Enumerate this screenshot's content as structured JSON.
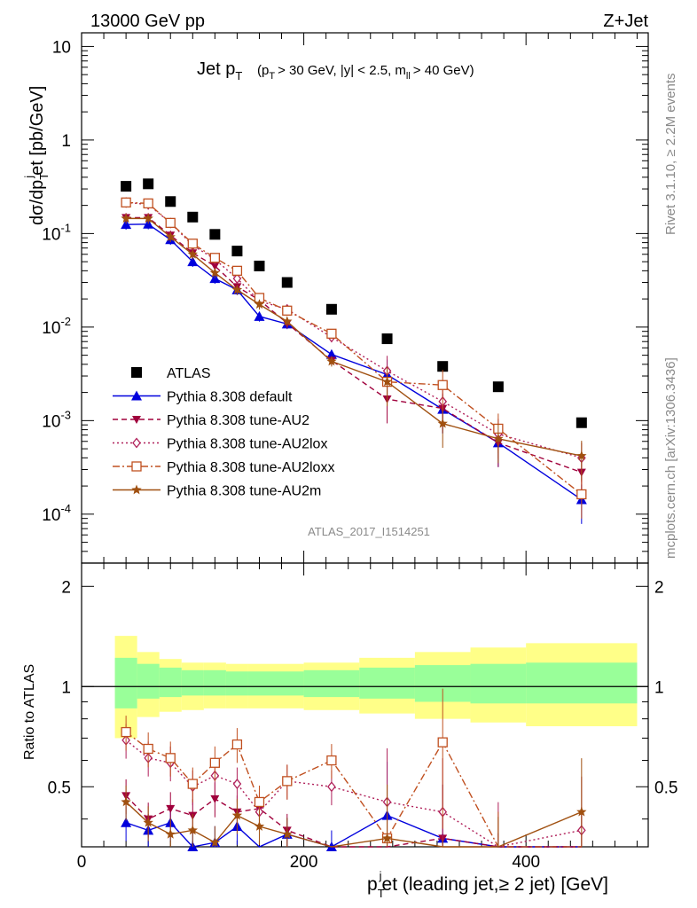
{
  "header": {
    "left": "13000 GeV pp",
    "right": "Z+Jet"
  },
  "plot_title": {
    "main": "Jet p",
    "sub": "T",
    "cuts": "(p",
    "cuts_sub": "T",
    "cuts_rest": "> 30 GeV, |y| < 2.5, m",
    "cuts_sub2": "ll",
    "cuts_end": "> 40 GeV)"
  },
  "side_labels": {
    "rivet": "Rivet 3.1.10, ≥ 2.2M events",
    "mcplots": "mcplots.cern.ch [arXiv:1306.3436]"
  },
  "watermark": "ATLAS_2017_I1514251",
  "ylabel_main": {
    "a": "dσ/dp",
    "b": "T",
    "c": "j",
    "d": "et [pb/GeV]"
  },
  "ylabel_ratio": "Ratio to ATLAS",
  "xlabel": {
    "a": "p",
    "b": "T",
    "c": "j",
    "d": "et (leading jet,≥ 2 jet) [GeV]"
  },
  "colors": {
    "ATLAS": "#000000",
    "default": "#0000dd",
    "AU2": "#a0003c",
    "AU2lox": "#b0205a",
    "AU2loxx": "#c05020",
    "AU2m": "#a05010",
    "band_inner": "#99ff99",
    "band_outer": "#ffff88"
  },
  "chart_data": {
    "type": "scatter",
    "xlim": [
      0,
      510
    ],
    "ylim_main": [
      3e-05,
      14
    ],
    "ylim_ratio": [
      0.33,
      2.35
    ],
    "y_log": true,
    "x_ticks": [
      "0",
      "200",
      "400"
    ],
    "y_ticks_main": [
      "10",
      "1",
      "10^-1",
      "10^-2",
      "10^-3",
      "10^-4"
    ],
    "y_ticks_ratio": [
      "2",
      "1",
      "0.5"
    ],
    "x": [
      40,
      60,
      80,
      100,
      120,
      140,
      160,
      185,
      225,
      275,
      325,
      375,
      450
    ],
    "bin_edges": [
      30,
      50,
      70,
      90,
      110,
      130,
      150,
      170,
      200,
      250,
      300,
      350,
      400,
      500
    ],
    "ratio_band_inner": [
      [
        0.86,
        1.22
      ],
      [
        0.92,
        1.17
      ],
      [
        0.93,
        1.14
      ],
      [
        0.94,
        1.12
      ],
      [
        0.94,
        1.12
      ],
      [
        0.94,
        1.11
      ],
      [
        0.94,
        1.11
      ],
      [
        0.94,
        1.11
      ],
      [
        0.93,
        1.12
      ],
      [
        0.92,
        1.14
      ],
      [
        0.9,
        1.16
      ],
      [
        0.89,
        1.17
      ],
      [
        0.89,
        1.18
      ]
    ],
    "ratio_band_outer": [
      [
        0.7,
        1.42
      ],
      [
        0.81,
        1.27
      ],
      [
        0.84,
        1.21
      ],
      [
        0.85,
        1.18
      ],
      [
        0.86,
        1.18
      ],
      [
        0.86,
        1.17
      ],
      [
        0.86,
        1.17
      ],
      [
        0.86,
        1.17
      ],
      [
        0.85,
        1.18
      ],
      [
        0.83,
        1.22
      ],
      [
        0.8,
        1.27
      ],
      [
        0.78,
        1.31
      ],
      [
        0.76,
        1.35
      ]
    ],
    "legend_position": "bottom-left",
    "series": [
      {
        "name": "ATLAS",
        "key": "ATLAS",
        "marker": "square",
        "values": [
          0.32,
          0.34,
          0.22,
          0.15,
          0.098,
          0.065,
          0.045,
          0.03,
          0.0155,
          0.0075,
          0.0038,
          0.0023,
          0.00095
        ]
      },
      {
        "name": "Pythia 8.308 default",
        "key": "default",
        "marker": "triangle-up",
        "line": "solid",
        "values": [
          0.125,
          0.126,
          0.086,
          0.05,
          0.033,
          0.025,
          0.013,
          0.0108,
          0.0051,
          0.0031,
          0.00132,
          0.00058,
          0.000143
        ]
      },
      {
        "name": "Pythia 8.308 tune-AU2",
        "key": "AU2",
        "marker": "triangle-down",
        "line": "dashed",
        "values": [
          0.148,
          0.148,
          0.096,
          0.062,
          0.045,
          0.027,
          0.0195,
          0.011,
          0.0044,
          0.0017,
          0.00135,
          0.00058,
          0.00028
        ]
      },
      {
        "name": "Pythia 8.308 tune-AU2lox",
        "key": "AU2lox",
        "marker": "diamond-open",
        "line": "dotted",
        "values": [
          0.215,
          0.205,
          0.13,
          0.075,
          0.053,
          0.033,
          0.019,
          0.0155,
          0.0078,
          0.0034,
          0.0016,
          0.00072,
          0.0004
        ]
      },
      {
        "name": "Pythia 8.308 tune-AU2loxx",
        "key": "AU2loxx",
        "marker": "square-open",
        "line": "dashdot",
        "values": [
          0.215,
          0.21,
          0.13,
          0.078,
          0.055,
          0.04,
          0.0205,
          0.015,
          0.0085,
          0.0026,
          0.0024,
          0.00082,
          0.000163
        ]
      },
      {
        "name": "Pythia 8.308 tune-AU2m",
        "key": "AU2m",
        "marker": "star",
        "line": "solid",
        "values": [
          0.145,
          0.145,
          0.092,
          0.06,
          0.038,
          0.025,
          0.0175,
          0.0115,
          0.0043,
          0.0026,
          0.00093,
          0.00064,
          0.00042
        ]
      }
    ],
    "ratio_series": [
      {
        "key": "default",
        "values": [
          0.39,
          0.37,
          0.39,
          0.33,
          0.34,
          0.38,
          0.29,
          0.36,
          0.33,
          0.41,
          0.35,
          0.25,
          0.15
        ]
      },
      {
        "key": "AU2",
        "values": [
          0.47,
          0.4,
          0.43,
          0.41,
          0.46,
          0.42,
          0.43,
          0.37,
          0.28,
          0.23,
          0.35,
          0.25,
          0.3
        ]
      },
      {
        "key": "AU2lox",
        "values": [
          0.69,
          0.61,
          0.59,
          0.5,
          0.54,
          0.51,
          0.42,
          0.52,
          0.5,
          0.45,
          0.42,
          0.31,
          0.37
        ]
      },
      {
        "key": "AU2loxx",
        "values": [
          0.73,
          0.65,
          0.61,
          0.51,
          0.59,
          0.67,
          0.45,
          0.52,
          0.6,
          0.35,
          0.68,
          0.29,
          0.18
        ]
      },
      {
        "key": "AU2m",
        "values": [
          0.45,
          0.39,
          0.36,
          0.37,
          0.34,
          0.41,
          0.38,
          0.36,
          0.28,
          0.35,
          0.24,
          0.28,
          0.42
        ]
      }
    ]
  }
}
